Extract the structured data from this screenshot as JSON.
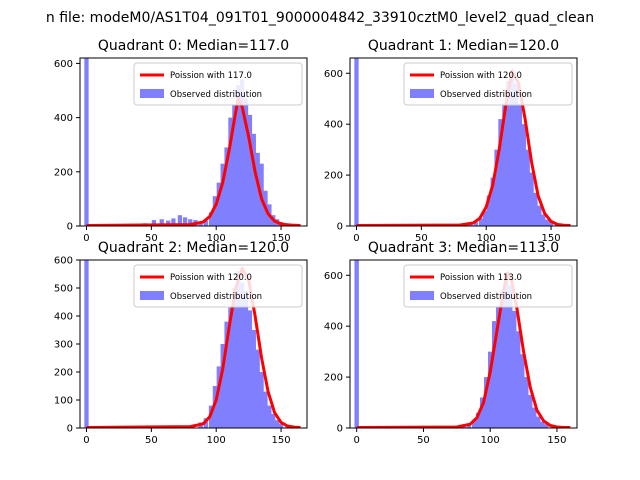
{
  "suptitle": "n file: modeM0/AS1T04_091T01_9000004842_33910cztM0_level2_quad_clean",
  "colors": {
    "poisson": "#ff0000",
    "observed": "#8080ff",
    "axis": "#000000",
    "background": "#ffffff"
  },
  "chart_data": [
    {
      "type": "bar",
      "title": "Quadrant 0: Median=117.0",
      "xlim": [
        -5,
        170
      ],
      "ylim": [
        0,
        620
      ],
      "xticks": [
        0,
        50,
        100,
        150
      ],
      "yticks": [
        0,
        200,
        400,
        600
      ],
      "legend": {
        "placement": "top-right",
        "line_label": "Poission with 117.0",
        "bar_label": "Observed distribution"
      },
      "lambda": 117.0,
      "histogram": {
        "bin_width": 3.3,
        "bins": [
          {
            "x": 0,
            "count": 620
          },
          {
            "x": 20,
            "count": 4
          },
          {
            "x": 30,
            "count": 3
          },
          {
            "x": 45,
            "count": 10
          },
          {
            "x": 52,
            "count": 22
          },
          {
            "x": 58,
            "count": 25
          },
          {
            "x": 63,
            "count": 20
          },
          {
            "x": 67,
            "count": 28
          },
          {
            "x": 72,
            "count": 40
          },
          {
            "x": 76,
            "count": 32
          },
          {
            "x": 80,
            "count": 25
          },
          {
            "x": 84,
            "count": 22
          },
          {
            "x": 88,
            "count": 15
          },
          {
            "x": 92,
            "count": 20
          },
          {
            "x": 96,
            "count": 50
          },
          {
            "x": 99,
            "count": 110
          },
          {
            "x": 102,
            "count": 160
          },
          {
            "x": 105,
            "count": 230
          },
          {
            "x": 108,
            "count": 290
          },
          {
            "x": 111,
            "count": 400
          },
          {
            "x": 114,
            "count": 450
          },
          {
            "x": 117,
            "count": 520
          },
          {
            "x": 120,
            "count": 540
          },
          {
            "x": 123,
            "count": 470
          },
          {
            "x": 126,
            "count": 410
          },
          {
            "x": 129,
            "count": 340
          },
          {
            "x": 132,
            "count": 270
          },
          {
            "x": 135,
            "count": 230
          },
          {
            "x": 138,
            "count": 130
          },
          {
            "x": 141,
            "count": 80
          },
          {
            "x": 144,
            "count": 40
          },
          {
            "x": 147,
            "count": 25
          },
          {
            "x": 150,
            "count": 15
          },
          {
            "x": 155,
            "count": 10
          },
          {
            "x": 160,
            "count": 6
          }
        ]
      },
      "curve": {
        "x": [
          0,
          80,
          90,
          95,
          100,
          105,
          110,
          115,
          117,
          120,
          125,
          130,
          135,
          140,
          145,
          150,
          155,
          160,
          165
        ],
        "y": [
          2,
          5,
          15,
          35,
          80,
          160,
          280,
          420,
          470,
          440,
          330,
          200,
          100,
          45,
          18,
          8,
          4,
          3,
          2
        ]
      }
    },
    {
      "type": "bar",
      "title": "Quadrant 1: Median=120.0",
      "xlim": [
        -5,
        170
      ],
      "ylim": [
        0,
        660
      ],
      "xticks": [
        0,
        50,
        100,
        150
      ],
      "yticks": [
        0,
        200,
        400,
        600
      ],
      "legend": {
        "placement": "top-right",
        "line_label": "Poission with 120.0",
        "bar_label": "Observed distribution"
      },
      "lambda": 120.0,
      "histogram": {
        "bin_width": 3.3,
        "bins": [
          {
            "x": 0,
            "count": 660
          },
          {
            "x": 30,
            "count": 4
          },
          {
            "x": 60,
            "count": 3
          },
          {
            "x": 88,
            "count": 8
          },
          {
            "x": 92,
            "count": 15
          },
          {
            "x": 96,
            "count": 30
          },
          {
            "x": 99,
            "count": 60
          },
          {
            "x": 102,
            "count": 120
          },
          {
            "x": 105,
            "count": 190
          },
          {
            "x": 108,
            "count": 300
          },
          {
            "x": 111,
            "count": 420
          },
          {
            "x": 114,
            "count": 480
          },
          {
            "x": 117,
            "count": 570
          },
          {
            "x": 120,
            "count": 600
          },
          {
            "x": 123,
            "count": 560
          },
          {
            "x": 126,
            "count": 480
          },
          {
            "x": 129,
            "count": 400
          },
          {
            "x": 132,
            "count": 300
          },
          {
            "x": 135,
            "count": 210
          },
          {
            "x": 138,
            "count": 130
          },
          {
            "x": 141,
            "count": 80
          },
          {
            "x": 144,
            "count": 45
          },
          {
            "x": 147,
            "count": 25
          },
          {
            "x": 150,
            "count": 15
          },
          {
            "x": 155,
            "count": 8
          },
          {
            "x": 160,
            "count": 4
          }
        ]
      },
      "curve": {
        "x": [
          0,
          80,
          90,
          95,
          100,
          105,
          110,
          115,
          120,
          125,
          130,
          135,
          140,
          145,
          150,
          155,
          160,
          165
        ],
        "y": [
          2,
          4,
          12,
          30,
          75,
          160,
          300,
          470,
          610,
          560,
          420,
          250,
          120,
          50,
          18,
          6,
          3,
          2
        ]
      }
    },
    {
      "type": "bar",
      "title": "Quadrant 2: Median=120.0",
      "xlim": [
        -5,
        170
      ],
      "ylim": [
        0,
        600
      ],
      "xticks": [
        0,
        50,
        100,
        150
      ],
      "yticks": [
        0,
        100,
        200,
        300,
        400,
        500,
        600
      ],
      "legend": {
        "placement": "top-right",
        "line_label": "Poission with 120.0",
        "bar_label": "Observed distribution"
      },
      "lambda": 120.0,
      "histogram": {
        "bin_width": 3.3,
        "bins": [
          {
            "x": 0,
            "count": 600
          },
          {
            "x": 30,
            "count": 3
          },
          {
            "x": 60,
            "count": 3
          },
          {
            "x": 88,
            "count": 20
          },
          {
            "x": 92,
            "count": 35
          },
          {
            "x": 96,
            "count": 80
          },
          {
            "x": 99,
            "count": 150
          },
          {
            "x": 102,
            "count": 220
          },
          {
            "x": 105,
            "count": 300
          },
          {
            "x": 108,
            "count": 380
          },
          {
            "x": 111,
            "count": 430
          },
          {
            "x": 114,
            "count": 500
          },
          {
            "x": 117,
            "count": 560
          },
          {
            "x": 120,
            "count": 520
          },
          {
            "x": 123,
            "count": 490
          },
          {
            "x": 126,
            "count": 420
          },
          {
            "x": 129,
            "count": 350
          },
          {
            "x": 132,
            "count": 280
          },
          {
            "x": 135,
            "count": 200
          },
          {
            "x": 138,
            "count": 130
          },
          {
            "x": 141,
            "count": 80
          },
          {
            "x": 144,
            "count": 50
          },
          {
            "x": 147,
            "count": 28
          },
          {
            "x": 150,
            "count": 15
          },
          {
            "x": 155,
            "count": 8
          },
          {
            "x": 160,
            "count": 4
          }
        ]
      },
      "curve": {
        "x": [
          0,
          80,
          90,
          95,
          100,
          105,
          110,
          115,
          120,
          125,
          130,
          135,
          140,
          145,
          150,
          155,
          160,
          165
        ],
        "y": [
          2,
          5,
          15,
          40,
          100,
          210,
          360,
          500,
          570,
          530,
          400,
          250,
          130,
          55,
          20,
          7,
          3,
          2
        ]
      }
    },
    {
      "type": "bar",
      "title": "Quadrant 3: Median=113.0",
      "xlim": [
        -5,
        165
      ],
      "ylim": [
        0,
        660
      ],
      "xticks": [
        0,
        50,
        100,
        150
      ],
      "yticks": [
        0,
        200,
        400,
        600
      ],
      "legend": {
        "placement": "top-right",
        "line_label": "Poission with 113.0",
        "bar_label": "Observed distribution"
      },
      "lambda": 113.0,
      "histogram": {
        "bin_width": 3.3,
        "bins": [
          {
            "x": 0,
            "count": 660
          },
          {
            "x": 30,
            "count": 4
          },
          {
            "x": 60,
            "count": 4
          },
          {
            "x": 80,
            "count": 8
          },
          {
            "x": 84,
            "count": 15
          },
          {
            "x": 88,
            "count": 30
          },
          {
            "x": 91,
            "count": 60
          },
          {
            "x": 94,
            "count": 120
          },
          {
            "x": 97,
            "count": 200
          },
          {
            "x": 100,
            "count": 300
          },
          {
            "x": 103,
            "count": 420
          },
          {
            "x": 106,
            "count": 480
          },
          {
            "x": 109,
            "count": 540
          },
          {
            "x": 112,
            "count": 610
          },
          {
            "x": 115,
            "count": 560
          },
          {
            "x": 118,
            "count": 460
          },
          {
            "x": 121,
            "count": 380
          },
          {
            "x": 124,
            "count": 290
          },
          {
            "x": 127,
            "count": 200
          },
          {
            "x": 130,
            "count": 130
          },
          {
            "x": 133,
            "count": 80
          },
          {
            "x": 136,
            "count": 45
          },
          {
            "x": 139,
            "count": 25
          },
          {
            "x": 142,
            "count": 15
          },
          {
            "x": 147,
            "count": 8
          },
          {
            "x": 152,
            "count": 4
          }
        ]
      },
      "curve": {
        "x": [
          0,
          75,
          85,
          90,
          95,
          100,
          105,
          110,
          113,
          116,
          120,
          125,
          130,
          135,
          140,
          145,
          150,
          155,
          160
        ],
        "y": [
          2,
          4,
          15,
          40,
          100,
          220,
          380,
          540,
          610,
          580,
          470,
          300,
          160,
          70,
          28,
          10,
          4,
          2,
          2
        ]
      }
    }
  ]
}
